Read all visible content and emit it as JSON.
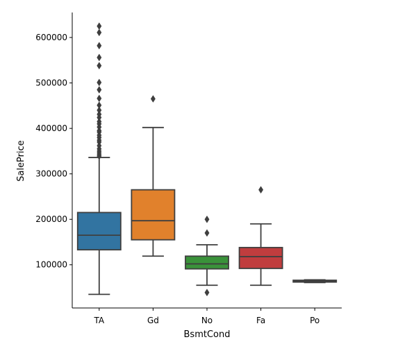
{
  "chart_data": {
    "type": "box",
    "xlabel": "BsmtCond",
    "ylabel": "SalePrice",
    "ylim": [
      5000,
      655000
    ],
    "yticks": [
      100000,
      200000,
      300000,
      400000,
      500000,
      600000
    ],
    "ytick_labels": [
      "100000",
      "200000",
      "300000",
      "400000",
      "500000",
      "600000"
    ],
    "grid": false,
    "categories": [
      "TA",
      "Gd",
      "No",
      "Fa",
      "Po"
    ],
    "boxes": [
      {
        "category": "TA",
        "color": "#3274a1",
        "whisker_low": 35000,
        "q1": 133000,
        "median": 165000,
        "q3": 215000,
        "whisker_high": 336000,
        "outliers": [
          625000,
          611000,
          582000,
          556000,
          538000,
          501000,
          485000,
          466000,
          451000,
          440000,
          431000,
          424000,
          415000,
          410000,
          403000,
          395000,
          392000,
          385000,
          380000,
          374000,
          370000,
          362000,
          355000,
          350000,
          346000,
          342000,
          339000
        ]
      },
      {
        "category": "Gd",
        "color": "#e1812c",
        "whisker_low": 119000,
        "q1": 155000,
        "median": 197000,
        "q3": 265000,
        "whisker_high": 402000,
        "outliers": [
          465000
        ]
      },
      {
        "category": "No",
        "color": "#3a923a",
        "whisker_low": 55000,
        "q1": 91000,
        "median": 102000,
        "q3": 119000,
        "whisker_high": 144000,
        "outliers": [
          200000,
          170000,
          39000
        ]
      },
      {
        "category": "Fa",
        "color": "#c03d3e",
        "whisker_low": 55000,
        "q1": 92000,
        "median": 118000,
        "q3": 138000,
        "whisker_high": 190000,
        "outliers": [
          265000
        ]
      },
      {
        "category": "Po",
        "color": "#9372b2",
        "whisker_low": 61000,
        "q1": 62000,
        "median": 64000,
        "q3": 66000,
        "whisker_high": 67000,
        "outliers": []
      }
    ]
  }
}
